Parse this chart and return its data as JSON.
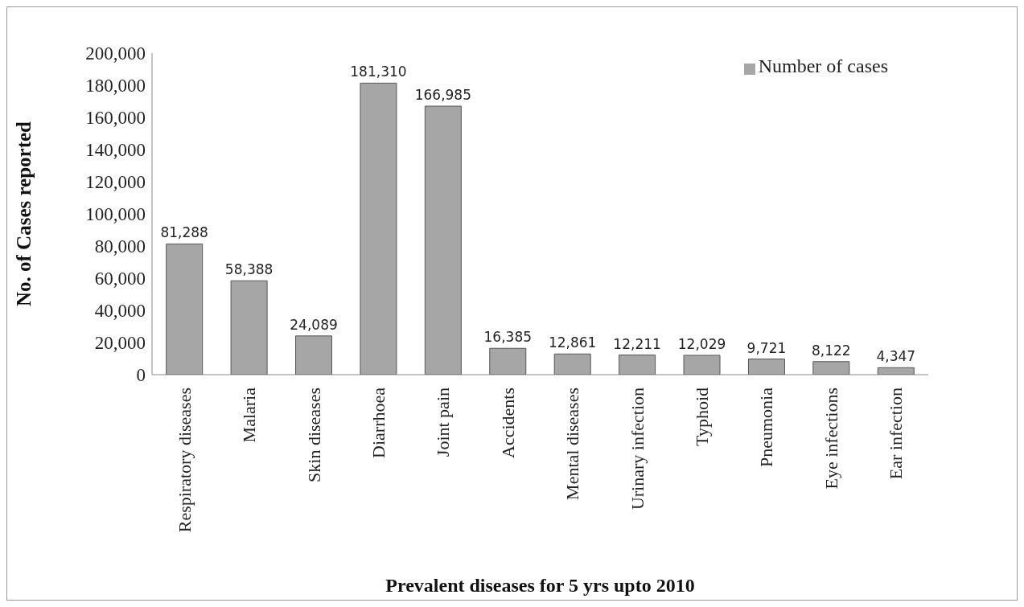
{
  "chart_data": {
    "type": "bar",
    "xlabel": "Prevalent diseases for 5 yrs upto 2010",
    "ylabel": "No. of Cases reported",
    "categories": [
      "Respiratory diseases",
      "Malaria",
      "Skin diseases",
      "Diarrhoea",
      "Joint pain",
      "Accidents",
      "Mental diseases",
      "Urinary infection",
      "Typhoid",
      "Pneumonia",
      "Eye infections",
      "Ear infection"
    ],
    "series": [
      {
        "name": "Number of cases",
        "color": "#a6a6a6",
        "values": [
          81288,
          58388,
          24089,
          181310,
          166985,
          16385,
          12861,
          12211,
          12029,
          9721,
          8122,
          4347
        ],
        "value_labels": [
          "81,288",
          "58,388",
          "24,089",
          "181,310",
          "166,985",
          "16,385",
          "12,861",
          "12,211",
          "12,029",
          "9,721",
          "8,122",
          "4,347"
        ]
      }
    ],
    "ylim": [
      0,
      200000
    ],
    "yticks": [
      {
        "value": 0,
        "label": "0"
      },
      {
        "value": 20000,
        "label": "20,000"
      },
      {
        "value": 40000,
        "label": "40,000"
      },
      {
        "value": 60000,
        "label": "60,000"
      },
      {
        "value": 80000,
        "label": "80,000"
      },
      {
        "value": 100000,
        "label": "100,000"
      },
      {
        "value": 120000,
        "label": "120,000"
      },
      {
        "value": 140000,
        "label": "140,000"
      },
      {
        "value": 160000,
        "label": "160,000"
      },
      {
        "value": 180000,
        "label": "180,000"
      },
      {
        "value": 200000,
        "label": "200,000"
      }
    ],
    "grid": false,
    "legend": "top right"
  }
}
